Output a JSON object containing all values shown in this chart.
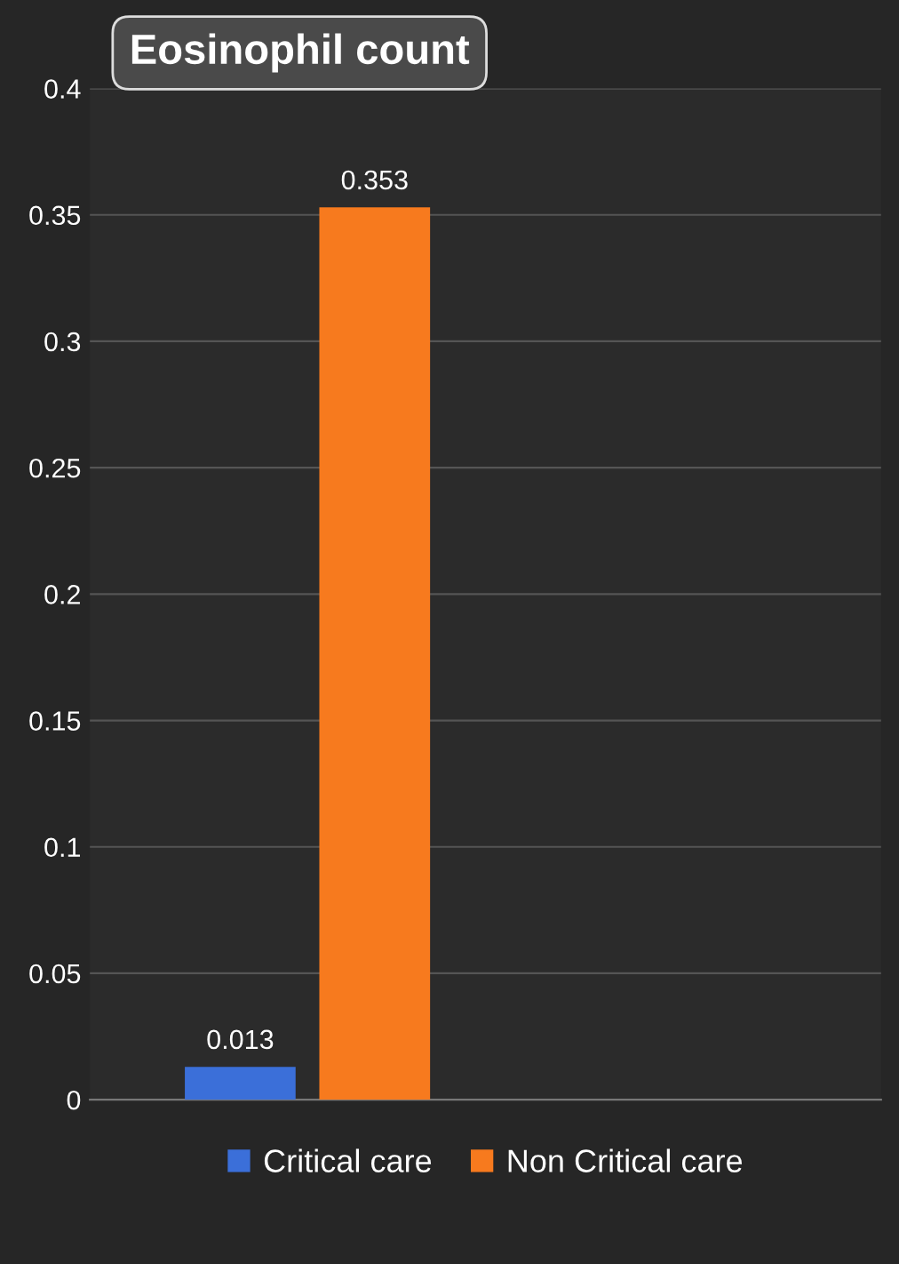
{
  "chart_data": {
    "type": "bar",
    "title": "Eosinophil count",
    "categories": [
      null
    ],
    "series": [
      {
        "name": "Critical care",
        "color": "#3b6fd9",
        "values": [
          0.013
        ]
      },
      {
        "name": "Non Critical care",
        "color": "#f77a1e",
        "values": [
          0.353
        ]
      }
    ],
    "ylim": [
      0,
      0.4
    ],
    "yticks": [
      0,
      0.05,
      0.1,
      0.15,
      0.2,
      0.25,
      0.3,
      0.35,
      0.4
    ],
    "grid": "y",
    "legend": "bottom",
    "data_labels": true
  }
}
